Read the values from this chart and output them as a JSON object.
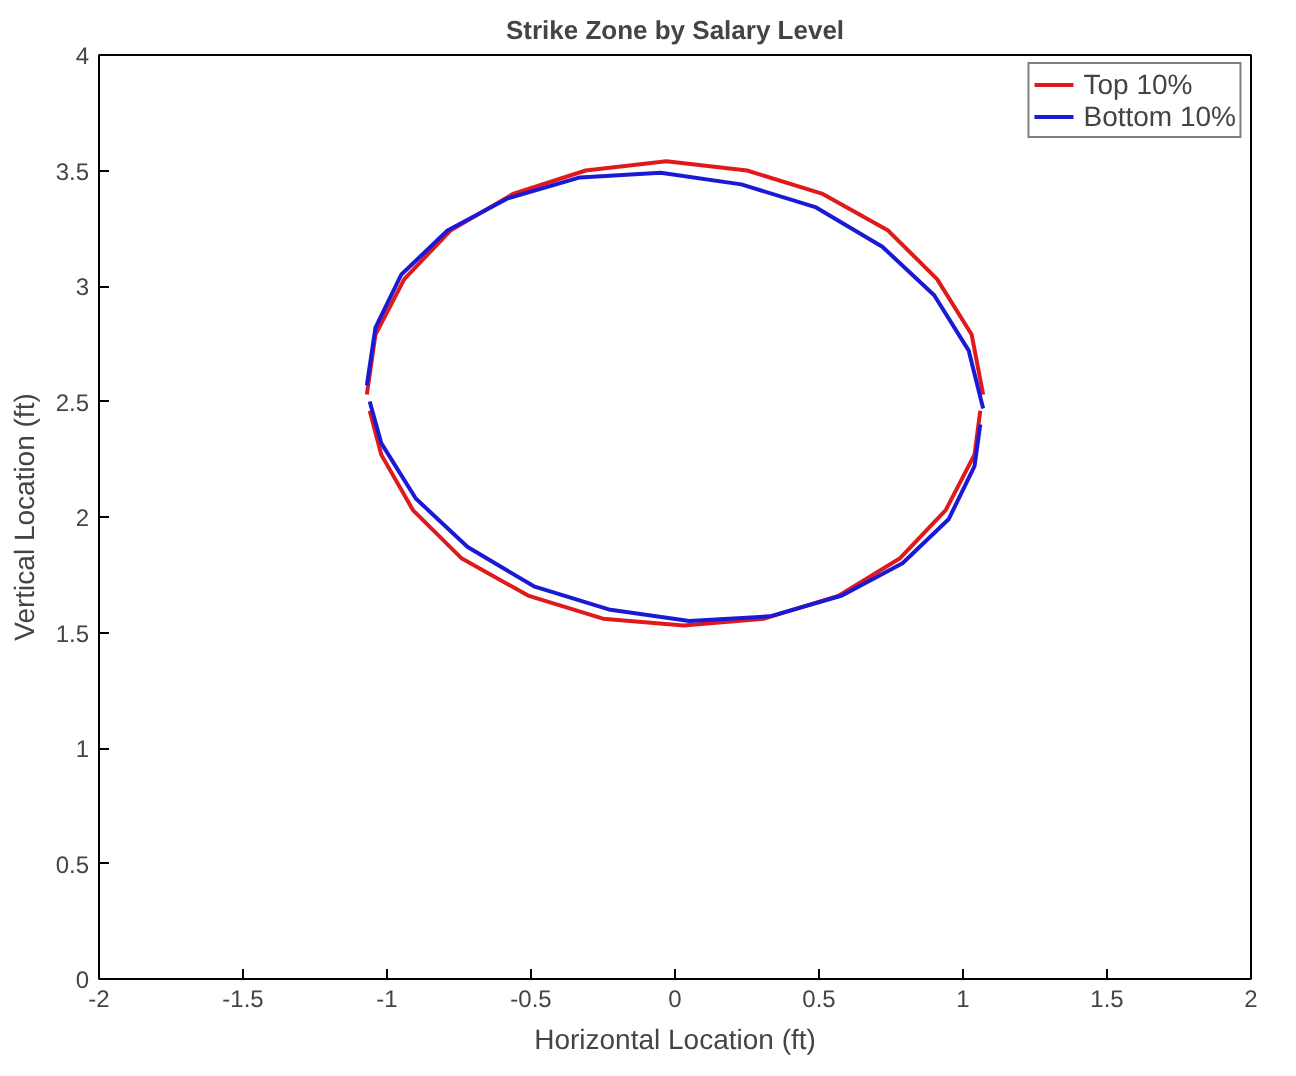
{
  "chart_data": {
    "type": "line",
    "title": "Strike Zone by Salary Level",
    "xlabel": "Horizontal Location (ft)",
    "ylabel": "Vertical Location (ft)",
    "xlim": [
      -2,
      2
    ],
    "ylim": [
      0,
      4
    ],
    "xticks": [
      -2,
      -1.5,
      -1,
      -0.5,
      0,
      0.5,
      1,
      1.5,
      2
    ],
    "yticks": [
      0,
      0.5,
      1,
      1.5,
      2,
      2.5,
      3,
      3.5,
      4
    ],
    "grid": false,
    "legend": "top right",
    "marker": "none",
    "line_style": "solid",
    "series": [
      {
        "name": "Top 10%",
        "color": "#e0191c",
        "x": [
          -1.07,
          -1.04,
          -0.94,
          -0.78,
          -0.56,
          -0.31,
          -0.03,
          0.25,
          0.51,
          0.74,
          0.91,
          1.03,
          1.07
        ],
        "values": [
          2.53,
          2.79,
          3.03,
          3.24,
          3.4,
          3.5,
          3.54,
          3.5,
          3.4,
          3.24,
          3.03,
          2.79,
          2.53
        ]
      },
      {
        "color": "#e0191c",
        "x": [
          -1.06,
          -1.02,
          -0.91,
          -0.74,
          -0.51,
          -0.25,
          0.03,
          0.31,
          0.57,
          0.78,
          0.94,
          1.04,
          1.06
        ],
        "values": [
          2.46,
          2.27,
          2.03,
          1.82,
          1.66,
          1.56,
          1.53,
          1.56,
          1.66,
          1.82,
          2.03,
          2.27,
          2.46
        ]
      },
      {
        "name": "Bottom 10%",
        "color": "#1a1ad6",
        "x": [
          -1.07,
          -1.04,
          -0.95,
          -0.79,
          -0.58,
          -0.33,
          -0.05,
          0.23,
          0.49,
          0.72,
          0.9,
          1.02,
          1.07
        ],
        "values": [
          2.57,
          2.82,
          3.05,
          3.24,
          3.38,
          3.47,
          3.49,
          3.44,
          3.34,
          3.17,
          2.96,
          2.72,
          2.47
        ]
      },
      {
        "color": "#1a1ad6",
        "x": [
          -1.06,
          -1.02,
          -0.9,
          -0.72,
          -0.49,
          -0.23,
          0.05,
          0.33,
          0.58,
          0.79,
          0.95,
          1.04,
          1.06
        ],
        "values": [
          2.5,
          2.32,
          2.08,
          1.87,
          1.7,
          1.6,
          1.55,
          1.57,
          1.66,
          1.8,
          1.99,
          2.22,
          2.4
        ]
      }
    ]
  }
}
